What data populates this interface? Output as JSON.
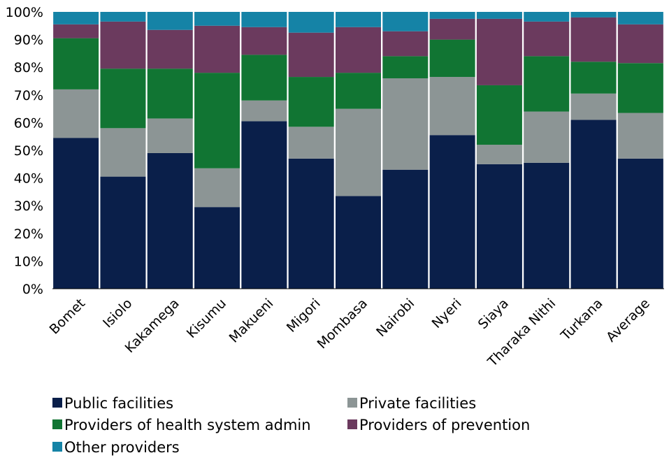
{
  "chart_data": {
    "type": "bar",
    "stacked": true,
    "percent": true,
    "categories": [
      "Bomet",
      "Isiolo",
      "Kakamega",
      "Kisumu",
      "Makueni",
      "Migori",
      "Mombasa",
      "Nairobi",
      "Nyeri",
      "Siaya",
      "Tharaka Nithi",
      "Turkana",
      "Average"
    ],
    "series": [
      {
        "name": "Public facilities",
        "color": "#0a1f4a",
        "values": [
          54.5,
          40.5,
          49,
          29.5,
          60.5,
          47,
          33.5,
          43,
          55.5,
          45,
          45.5,
          61,
          47
        ]
      },
      {
        "name": "Private facilities",
        "color": "#8c9595",
        "values": [
          17.5,
          17.5,
          12.5,
          14,
          7.5,
          11.5,
          31.5,
          33,
          21,
          7,
          18.5,
          9.5,
          16.5
        ]
      },
      {
        "name": "Providers of health system admin",
        "color": "#117533",
        "values": [
          18.5,
          21.5,
          18,
          34.5,
          16.5,
          18,
          13,
          8,
          13.5,
          21.5,
          20,
          11.5,
          18
        ]
      },
      {
        "name": "Providers of prevention",
        "color": "#6b3a5e",
        "values": [
          5,
          17,
          14,
          17,
          10,
          16,
          16.5,
          9,
          7.5,
          24,
          12.5,
          16,
          14
        ]
      },
      {
        "name": "Other providers",
        "color": "#1583a6",
        "values": [
          4.5,
          3.5,
          6.5,
          5,
          5.5,
          7.5,
          5.5,
          7,
          2.5,
          2.5,
          3.5,
          2,
          4.5
        ]
      }
    ],
    "ylim": [
      0,
      100
    ],
    "yticks": [
      "0%",
      "10%",
      "20%",
      "30%",
      "40%",
      "50%",
      "60%",
      "70%",
      "80%",
      "90%",
      "100%"
    ],
    "grid": false,
    "legend_position": "bottom-left",
    "title": "",
    "xlabel": "",
    "ylabel": ""
  }
}
